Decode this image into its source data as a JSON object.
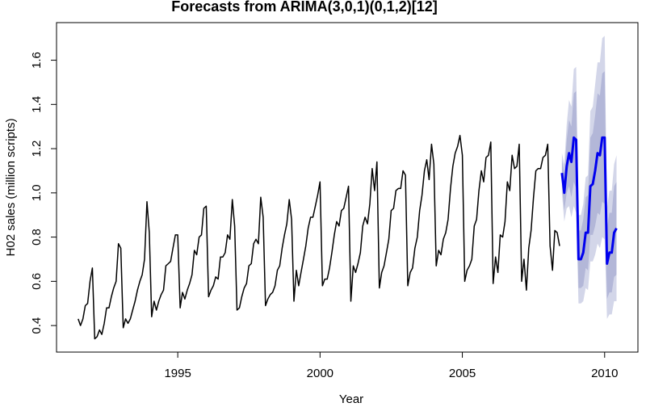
{
  "chart_data": {
    "type": "line",
    "title": "Forecasts from ARIMA(3,0,1)(0,1,2)[12]",
    "x_label": "Year",
    "y_label": "H02 sales (million scripts)",
    "xlim": [
      1990.74,
      2011.17
    ],
    "ylim": [
      0.28,
      1.77
    ],
    "xticks": [
      1995,
      2000,
      2005,
      2010
    ],
    "yticks": [
      0.4,
      0.6,
      0.8,
      {
        "value": 1.0,
        "label": "1.0"
      },
      1.2,
      1.4,
      1.6
    ],
    "bands": [
      {
        "color": "#d3d6e9",
        "x": [
          2008.5,
          2008.583,
          2008.667,
          2008.75,
          2008.833,
          2008.917,
          2009,
          2009.083,
          2009.167,
          2009.25,
          2009.333,
          2009.417,
          2009.5,
          2009.583,
          2009.667,
          2009.75,
          2009.833,
          2009.917,
          2010,
          2010.083,
          2010.167,
          2010.25,
          2010.333,
          2010.417
        ],
        "lower": [
          1.0,
          0.87,
          0.93,
          0.94,
          0.89,
          0.94,
          0.91,
          0.5,
          0.5,
          0.51,
          0.57,
          0.56,
          0.69,
          0.69,
          0.72,
          0.77,
          0.75,
          0.8,
          0.79,
          0.43,
          0.45,
          0.45,
          0.51,
          0.51
        ],
        "upper": [
          1.18,
          1.13,
          1.31,
          1.42,
          1.39,
          1.56,
          1.57,
          0.9,
          0.9,
          0.95,
          1.07,
          1.08,
          1.37,
          1.39,
          1.49,
          1.59,
          1.59,
          1.7,
          1.71,
          0.93,
          1.01,
          1.01,
          1.13,
          1.17
        ]
      },
      {
        "color": "#b3b7d8",
        "x": [
          2008.5,
          2008.583,
          2008.667,
          2008.75,
          2008.833,
          2008.917,
          2009,
          2009.083,
          2009.167,
          2009.25,
          2009.333,
          2009.417,
          2009.5,
          2009.583,
          2009.667,
          2009.75,
          2009.833,
          2009.917,
          2010,
          2010.083,
          2010.167,
          2010.25,
          2010.333,
          2010.417
        ],
        "lower": [
          1.03,
          0.92,
          1.0,
          1.03,
          0.98,
          1.05,
          1.02,
          0.57,
          0.57,
          0.58,
          0.66,
          0.65,
          0.81,
          0.81,
          0.85,
          0.91,
          0.9,
          0.96,
          0.95,
          0.52,
          0.55,
          0.55,
          0.62,
          0.63
        ],
        "upper": [
          1.15,
          1.09,
          1.24,
          1.33,
          1.3,
          1.45,
          1.46,
          0.83,
          0.83,
          0.88,
          0.98,
          0.99,
          1.25,
          1.27,
          1.35,
          1.45,
          1.44,
          1.54,
          1.55,
          0.84,
          0.91,
          0.91,
          1.03,
          1.05
        ]
      }
    ],
    "series": [
      {
        "color": "#000000",
        "width": 1.5,
        "x": [
          1991.5,
          1991.583,
          1991.667,
          1991.75,
          1991.833,
          1991.917,
          1992,
          1992.083,
          1992.167,
          1992.25,
          1992.333,
          1992.417,
          1992.5,
          1992.583,
          1992.667,
          1992.75,
          1992.833,
          1992.917,
          1993,
          1993.083,
          1993.167,
          1993.25,
          1993.333,
          1993.417,
          1993.5,
          1993.583,
          1993.667,
          1993.75,
          1993.833,
          1993.917,
          1994,
          1994.083,
          1994.167,
          1994.25,
          1994.333,
          1994.417,
          1994.5,
          1994.583,
          1994.667,
          1994.75,
          1994.833,
          1994.917,
          1995,
          1995.083,
          1995.167,
          1995.25,
          1995.333,
          1995.417,
          1995.5,
          1995.583,
          1995.667,
          1995.75,
          1995.833,
          1995.917,
          1996,
          1996.083,
          1996.167,
          1996.25,
          1996.333,
          1996.417,
          1996.5,
          1996.583,
          1996.667,
          1996.75,
          1996.833,
          1996.917,
          1997,
          1997.083,
          1997.167,
          1997.25,
          1997.333,
          1997.417,
          1997.5,
          1997.583,
          1997.667,
          1997.75,
          1997.833,
          1997.917,
          1998,
          1998.083,
          1998.167,
          1998.25,
          1998.333,
          1998.417,
          1998.5,
          1998.583,
          1998.667,
          1998.75,
          1998.833,
          1998.917,
          1999,
          1999.083,
          1999.167,
          1999.25,
          1999.333,
          1999.417,
          1999.5,
          1999.583,
          1999.667,
          1999.75,
          1999.833,
          1999.917,
          2000,
          2000.083,
          2000.167,
          2000.25,
          2000.333,
          2000.417,
          2000.5,
          2000.583,
          2000.667,
          2000.75,
          2000.833,
          2000.917,
          2001,
          2001.083,
          2001.167,
          2001.25,
          2001.333,
          2001.417,
          2001.5,
          2001.583,
          2001.667,
          2001.75,
          2001.833,
          2001.917,
          2002,
          2002.083,
          2002.167,
          2002.25,
          2002.333,
          2002.417,
          2002.5,
          2002.583,
          2002.667,
          2002.75,
          2002.833,
          2002.917,
          2003,
          2003.083,
          2003.167,
          2003.25,
          2003.333,
          2003.417,
          2003.5,
          2003.583,
          2003.667,
          2003.75,
          2003.833,
          2003.917,
          2004,
          2004.083,
          2004.167,
          2004.25,
          2004.333,
          2004.417,
          2004.5,
          2004.583,
          2004.667,
          2004.75,
          2004.833,
          2004.917,
          2005,
          2005.083,
          2005.167,
          2005.25,
          2005.333,
          2005.417,
          2005.5,
          2005.583,
          2005.667,
          2005.75,
          2005.833,
          2005.917,
          2006,
          2006.083,
          2006.167,
          2006.25,
          2006.333,
          2006.417,
          2006.5,
          2006.583,
          2006.667,
          2006.75,
          2006.833,
          2006.917,
          2007,
          2007.083,
          2007.167,
          2007.25,
          2007.333,
          2007.417,
          2007.5,
          2007.583,
          2007.667,
          2007.75,
          2007.833,
          2007.917,
          2008,
          2008.083,
          2008.167,
          2008.25,
          2008.333,
          2008.417
        ],
        "values": [
          0.43,
          0.4,
          0.43,
          0.49,
          0.5,
          0.6,
          0.66,
          0.34,
          0.35,
          0.38,
          0.36,
          0.41,
          0.48,
          0.48,
          0.53,
          0.57,
          0.6,
          0.77,
          0.75,
          0.39,
          0.43,
          0.41,
          0.43,
          0.47,
          0.51,
          0.56,
          0.6,
          0.63,
          0.7,
          0.96,
          0.82,
          0.44,
          0.51,
          0.47,
          0.51,
          0.54,
          0.56,
          0.67,
          0.68,
          0.69,
          0.75,
          0.81,
          0.81,
          0.48,
          0.55,
          0.52,
          0.56,
          0.59,
          0.63,
          0.74,
          0.72,
          0.8,
          0.81,
          0.93,
          0.94,
          0.53,
          0.56,
          0.58,
          0.62,
          0.61,
          0.71,
          0.71,
          0.73,
          0.81,
          0.79,
          0.97,
          0.85,
          0.47,
          0.48,
          0.53,
          0.57,
          0.59,
          0.67,
          0.68,
          0.77,
          0.79,
          0.77,
          0.98,
          0.89,
          0.49,
          0.52,
          0.54,
          0.55,
          0.58,
          0.65,
          0.67,
          0.75,
          0.81,
          0.86,
          0.97,
          0.88,
          0.51,
          0.65,
          0.58,
          0.64,
          0.7,
          0.76,
          0.84,
          0.89,
          0.89,
          0.94,
          0.99,
          1.05,
          0.58,
          0.61,
          0.61,
          0.66,
          0.73,
          0.81,
          0.87,
          0.85,
          0.92,
          0.93,
          0.98,
          1.03,
          0.51,
          0.67,
          0.64,
          0.68,
          0.73,
          0.85,
          0.89,
          0.86,
          0.95,
          1.11,
          1.01,
          1.14,
          0.57,
          0.64,
          0.67,
          0.73,
          0.79,
          0.92,
          0.93,
          1.01,
          1.02,
          1.02,
          1.1,
          1.08,
          0.58,
          0.64,
          0.66,
          0.75,
          0.8,
          0.92,
          0.99,
          1.1,
          1.15,
          1.06,
          1.22,
          1.13,
          0.67,
          0.74,
          0.72,
          0.79,
          0.82,
          0.88,
          1.02,
          1.12,
          1.18,
          1.21,
          1.26,
          1.17,
          0.6,
          0.65,
          0.67,
          0.7,
          0.85,
          0.88,
          1.01,
          1.1,
          1.05,
          1.16,
          1.17,
          1.23,
          0.59,
          0.71,
          0.64,
          0.81,
          0.8,
          0.87,
          1.05,
          1.01,
          1.17,
          1.11,
          1.12,
          1.22,
          0.6,
          0.7,
          0.56,
          0.75,
          0.83,
          0.98,
          1.1,
          1.11,
          1.11,
          1.16,
          1.17,
          1.22,
          0.76,
          0.65,
          0.83,
          0.82,
          0.76
        ]
      },
      {
        "color": "#0000ee",
        "width": 3,
        "x": [
          2008.5,
          2008.583,
          2008.667,
          2008.75,
          2008.833,
          2008.917,
          2009,
          2009.083,
          2009.167,
          2009.25,
          2009.333,
          2009.417,
          2009.5,
          2009.583,
          2009.667,
          2009.75,
          2009.833,
          2009.917,
          2010,
          2010.083,
          2010.167,
          2010.25,
          2010.333,
          2010.417
        ],
        "values": [
          1.09,
          1.0,
          1.12,
          1.18,
          1.14,
          1.25,
          1.24,
          0.7,
          0.7,
          0.73,
          0.82,
          0.82,
          1.03,
          1.04,
          1.1,
          1.18,
          1.17,
          1.25,
          1.25,
          0.68,
          0.73,
          0.73,
          0.82,
          0.84
        ]
      }
    ]
  }
}
